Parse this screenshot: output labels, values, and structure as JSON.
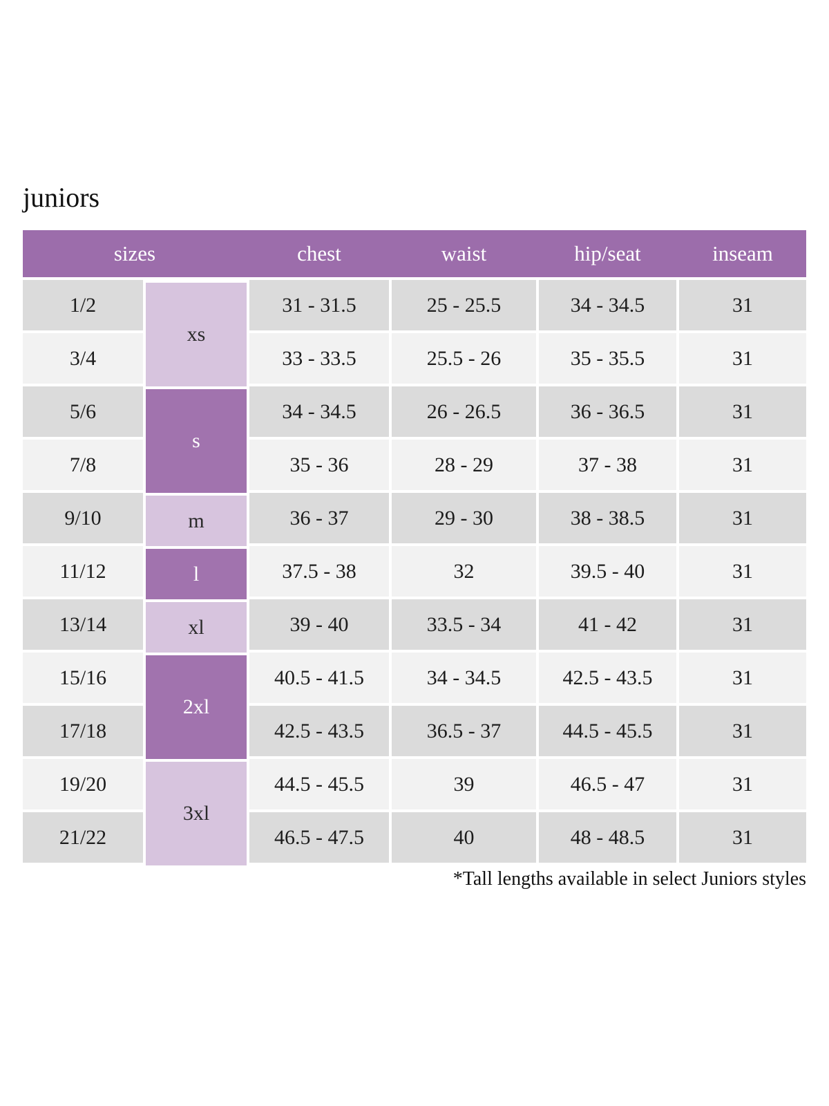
{
  "page": {
    "title": "juniors",
    "footnote": "*Tall lengths available in select Juniors styles"
  },
  "colors": {
    "header_bg": "#9c6dab",
    "size_group_dark": "#a173ae",
    "size_group_light": "#d7c4de",
    "row_gray": "#dbdbdb",
    "row_light": "#f2f2f2",
    "header_text": "#ffffff",
    "body_text": "#1c1c1c"
  },
  "table": {
    "headers": [
      "sizes",
      "chest",
      "waist",
      "hip/seat",
      "inseam"
    ],
    "size_groups": [
      {
        "label": "xs",
        "rows_spanned": 2,
        "tone": "light"
      },
      {
        "label": "s",
        "rows_spanned": 2,
        "tone": "dark"
      },
      {
        "label": "m",
        "rows_spanned": 1,
        "tone": "light"
      },
      {
        "label": "l",
        "rows_spanned": 1,
        "tone": "dark"
      },
      {
        "label": "xl",
        "rows_spanned": 1,
        "tone": "light"
      },
      {
        "label": "2xl",
        "rows_spanned": 2,
        "tone": "dark"
      },
      {
        "label": "3xl",
        "rows_spanned": 2,
        "tone": "light"
      }
    ],
    "rows": [
      {
        "size": "1/2",
        "group": "xs",
        "chest": "31 - 31.5",
        "waist": "25 - 25.5",
        "hip_seat": "34 - 34.5",
        "inseam": "31"
      },
      {
        "size": "3/4",
        "group": "xs",
        "chest": "33 - 33.5",
        "waist": "25.5 - 26",
        "hip_seat": "35 - 35.5",
        "inseam": "31"
      },
      {
        "size": "5/6",
        "group": "s",
        "chest": "34 - 34.5",
        "waist": "26 - 26.5",
        "hip_seat": "36 - 36.5",
        "inseam": "31"
      },
      {
        "size": "7/8",
        "group": "s",
        "chest": "35 - 36",
        "waist": "28 - 29",
        "hip_seat": "37 - 38",
        "inseam": "31"
      },
      {
        "size": "9/10",
        "group": "m",
        "chest": "36 - 37",
        "waist": "29 - 30",
        "hip_seat": "38 - 38.5",
        "inseam": "31"
      },
      {
        "size": "11/12",
        "group": "l",
        "chest": "37.5 - 38",
        "waist": "32",
        "hip_seat": "39.5 - 40",
        "inseam": "31"
      },
      {
        "size": "13/14",
        "group": "xl",
        "chest": "39 - 40",
        "waist": "33.5 - 34",
        "hip_seat": "41 - 42",
        "inseam": "31"
      },
      {
        "size": "15/16",
        "group": "2xl",
        "chest": "40.5 - 41.5",
        "waist": "34 - 34.5",
        "hip_seat": "42.5 - 43.5",
        "inseam": "31"
      },
      {
        "size": "17/18",
        "group": "2xl",
        "chest": "42.5 - 43.5",
        "waist": "36.5 - 37",
        "hip_seat": "44.5 - 45.5",
        "inseam": "31"
      },
      {
        "size": "19/20",
        "group": "3xl",
        "chest": "44.5 - 45.5",
        "waist": "39",
        "hip_seat": "46.5 - 47",
        "inseam": "31"
      },
      {
        "size": "21/22",
        "group": "3xl",
        "chest": "46.5 - 47.5",
        "waist": "40",
        "hip_seat": "48 - 48.5",
        "inseam": "31"
      }
    ]
  }
}
